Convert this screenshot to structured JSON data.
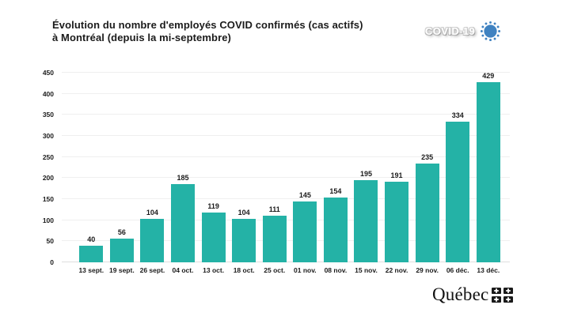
{
  "header": {
    "title_line1": "Évolution du nombre d'employés COVID confirmés (cas actifs)",
    "title_line2": "à Montréal (depuis la mi-septembre)",
    "badge_label": "COVID-19"
  },
  "chart_data": {
    "type": "bar",
    "title": "Évolution du nombre d'employés COVID confirmés (cas actifs) à Montréal (depuis la mi-septembre)",
    "categories": [
      "13 sept.",
      "19 sept.",
      "26 sept.",
      "04 oct.",
      "13 oct.",
      "18 oct.",
      "25 oct.",
      "01 nov.",
      "08 nov.",
      "15 nov.",
      "22 nov.",
      "29 nov.",
      "06 déc.",
      "13 déc."
    ],
    "values": [
      40,
      56,
      104,
      185,
      119,
      104,
      111,
      145,
      154,
      195,
      191,
      235,
      334,
      429
    ],
    "xlabel": "",
    "ylabel": "",
    "ylim": [
      0,
      450
    ],
    "ytick_step": 50,
    "grid": true,
    "legend": "none",
    "value_labels": true,
    "bar_color": "#24b2a6"
  },
  "footer": {
    "wordmark": "Québec"
  },
  "icons": {
    "virus": "virus-icon",
    "quebec_flag": "quebec-flag-icon"
  },
  "colors": {
    "bar": "#24b2a6",
    "virus_blue": "#3f82c1",
    "text": "#1b1b1b",
    "gridline": "#efefef",
    "baseline": "#dfdfdf",
    "background": "#ffffff"
  }
}
